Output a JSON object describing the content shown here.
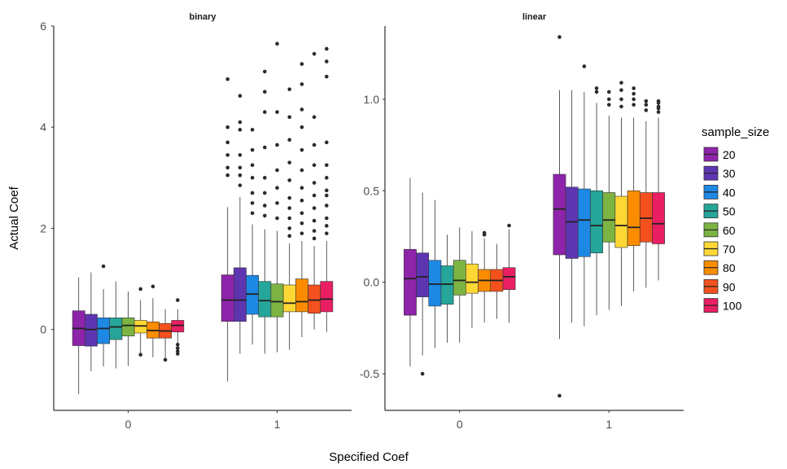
{
  "chart_data": {
    "type": "boxplot",
    "xlabel": "Specified Coef",
    "ylabel": "Actual Coef",
    "categories": [
      "0",
      "1"
    ],
    "legend": {
      "title": "sample_size",
      "position": "right",
      "entries": [
        {
          "label": "20",
          "color": "#8E24AA"
        },
        {
          "label": "30",
          "color": "#5E35B1"
        },
        {
          "label": "40",
          "color": "#1E88E5"
        },
        {
          "label": "50",
          "color": "#26A69A"
        },
        {
          "label": "60",
          "color": "#7CB342"
        },
        {
          "label": "70",
          "color": "#FDD835"
        },
        {
          "label": "80",
          "color": "#FB8C00"
        },
        {
          "label": "90",
          "color": "#F4511E"
        },
        {
          "label": "100",
          "color": "#E91E63"
        }
      ]
    },
    "panels": [
      {
        "title": "binary",
        "ylim": [
          -1.6,
          6.0
        ],
        "yticks": [
          0,
          2,
          4,
          6
        ],
        "groups": [
          {
            "x": "0",
            "boxes": [
              {
                "size": "20",
                "min": -1.28,
                "q1": -0.32,
                "median": 0.02,
                "q3": 0.37,
                "max": 1.03,
                "outliers": []
              },
              {
                "size": "30",
                "min": -0.83,
                "q1": -0.33,
                "median": 0.0,
                "q3": 0.3,
                "max": 1.13,
                "outliers": []
              },
              {
                "size": "40",
                "min": -0.73,
                "q1": -0.28,
                "median": 0.02,
                "q3": 0.23,
                "max": 0.8,
                "outliers": [
                  1.25
                ]
              },
              {
                "size": "50",
                "min": -0.77,
                "q1": -0.2,
                "median": 0.05,
                "q3": 0.23,
                "max": 0.95,
                "outliers": []
              },
              {
                "size": "60",
                "min": -0.72,
                "q1": -0.13,
                "median": 0.08,
                "q3": 0.23,
                "max": 0.75,
                "outliers": []
              },
              {
                "size": "70",
                "min": -0.48,
                "q1": -0.07,
                "median": 0.07,
                "q3": 0.18,
                "max": 0.58,
                "outliers": [
                  -0.5,
                  0.8
                ]
              },
              {
                "size": "80",
                "min": -0.55,
                "q1": -0.17,
                "median": -0.02,
                "q3": 0.15,
                "max": 0.62,
                "outliers": [
                  0.85
                ]
              },
              {
                "size": "90",
                "min": -0.57,
                "q1": -0.17,
                "median": -0.03,
                "q3": 0.12,
                "max": 0.4,
                "outliers": [
                  -0.6
                ]
              },
              {
                "size": "100",
                "min": -0.3,
                "q1": -0.05,
                "median": 0.08,
                "q3": 0.18,
                "max": 0.4,
                "outliers": [
                  -0.3,
                  -0.37,
                  -0.43,
                  -0.48,
                  0.58
                ]
              }
            ]
          },
          {
            "x": "1",
            "boxes": [
              {
                "size": "20",
                "min": -1.03,
                "q1": 0.16,
                "median": 0.58,
                "q3": 1.08,
                "max": 2.42,
                "outliers": [
                  3.05,
                  3.2,
                  3.45,
                  3.7,
                  4.0,
                  4.95
                ]
              },
              {
                "size": "30",
                "min": -0.48,
                "q1": 0.16,
                "median": 0.58,
                "q3": 1.22,
                "max": 2.62,
                "outliers": [
                  2.85,
                  3.05,
                  3.2,
                  3.45,
                  3.95,
                  4.1,
                  4.62
                ]
              },
              {
                "size": "40",
                "min": -0.3,
                "q1": 0.3,
                "median": 0.7,
                "q3": 1.07,
                "max": 2.08,
                "outliers": [
                  2.3,
                  2.5,
                  2.7,
                  3.0,
                  3.25,
                  3.55,
                  3.95
                ]
              },
              {
                "size": "50",
                "min": -0.48,
                "q1": 0.25,
                "median": 0.57,
                "q3": 0.95,
                "max": 1.98,
                "outliers": [
                  2.25,
                  2.45,
                  2.7,
                  3.0,
                  3.6,
                  4.3,
                  4.7,
                  5.1
                ]
              },
              {
                "size": "60",
                "min": -0.45,
                "q1": 0.25,
                "median": 0.55,
                "q3": 0.9,
                "max": 1.95,
                "outliers": [
                  2.2,
                  2.5,
                  2.8,
                  3.15,
                  3.65,
                  4.3,
                  5.65
                ]
              },
              {
                "size": "70",
                "min": -0.4,
                "q1": 0.35,
                "median": 0.52,
                "q3": 0.88,
                "max": 1.7,
                "outliers": [
                  1.85,
                  2.0,
                  2.2,
                  2.4,
                  2.6,
                  2.95,
                  3.3,
                  3.75,
                  4.2,
                  4.75
                ]
              },
              {
                "size": "80",
                "min": -0.15,
                "q1": 0.35,
                "median": 0.55,
                "q3": 1.0,
                "max": 1.75,
                "outliers": [
                  1.9,
                  2.1,
                  2.3,
                  2.55,
                  2.8,
                  3.15,
                  3.55,
                  4.0,
                  4.35,
                  4.85,
                  5.25
                ]
              },
              {
                "size": "90",
                "min": 0.0,
                "q1": 0.32,
                "median": 0.58,
                "q3": 0.88,
                "max": 1.65,
                "outliers": [
                  1.8,
                  1.95,
                  2.15,
                  2.4,
                  2.65,
                  2.9,
                  3.25,
                  3.65,
                  4.2,
                  5.45
                ]
              },
              {
                "size": "100",
                "min": -0.05,
                "q1": 0.35,
                "median": 0.6,
                "q3": 0.95,
                "max": 1.75,
                "outliers": [
                  1.9,
                  2.05,
                  2.2,
                  2.45,
                  2.65,
                  2.75,
                  3.0,
                  3.25,
                  3.7,
                  5.0,
                  5.3,
                  5.55
                ]
              }
            ]
          }
        ]
      },
      {
        "title": "linear",
        "ylim": [
          -0.7,
          1.4
        ],
        "yticks": [
          -0.5,
          0.0,
          0.5,
          1.0
        ],
        "ytick_labels": [
          "-0.5",
          "0.0",
          "0.5",
          "1.0"
        ],
        "groups": [
          {
            "x": "0",
            "boxes": [
              {
                "size": "20",
                "min": -0.46,
                "q1": -0.18,
                "median": 0.02,
                "q3": 0.18,
                "max": 0.57,
                "outliers": []
              },
              {
                "size": "30",
                "min": -0.4,
                "q1": -0.08,
                "median": 0.03,
                "q3": 0.16,
                "max": 0.49,
                "outliers": [
                  -0.5
                ]
              },
              {
                "size": "40",
                "min": -0.36,
                "q1": -0.13,
                "median": -0.01,
                "q3": 0.12,
                "max": 0.45,
                "outliers": []
              },
              {
                "size": "50",
                "min": -0.33,
                "q1": -0.12,
                "median": -0.01,
                "q3": 0.09,
                "max": 0.26,
                "outliers": []
              },
              {
                "size": "60",
                "min": -0.33,
                "q1": -0.07,
                "median": 0.01,
                "q3": 0.12,
                "max": 0.3,
                "outliers": []
              },
              {
                "size": "70",
                "min": -0.25,
                "q1": -0.06,
                "median": 0.0,
                "q3": 0.1,
                "max": 0.28,
                "outliers": []
              },
              {
                "size": "80",
                "min": -0.22,
                "q1": -0.05,
                "median": 0.01,
                "q3": 0.07,
                "max": 0.24,
                "outliers": [
                  0.26,
                  0.27
                ]
              },
              {
                "size": "90",
                "min": -0.2,
                "q1": -0.05,
                "median": 0.01,
                "q3": 0.07,
                "max": 0.21,
                "outliers": []
              },
              {
                "size": "100",
                "min": -0.22,
                "q1": -0.04,
                "median": 0.03,
                "q3": 0.08,
                "max": 0.29,
                "outliers": [
                  0.31
                ]
              }
            ]
          },
          {
            "x": "1",
            "boxes": [
              {
                "size": "20",
                "min": -0.31,
                "q1": 0.15,
                "median": 0.4,
                "q3": 0.59,
                "max": 1.05,
                "outliers": [
                  -0.62,
                  1.34
                ]
              },
              {
                "size": "30",
                "min": -0.22,
                "q1": 0.13,
                "median": 0.33,
                "q3": 0.52,
                "max": 1.05,
                "outliers": []
              },
              {
                "size": "40",
                "min": -0.24,
                "q1": 0.14,
                "median": 0.34,
                "q3": 0.51,
                "max": 1.04,
                "outliers": [
                  1.18
                ]
              },
              {
                "size": "50",
                "min": -0.18,
                "q1": 0.16,
                "median": 0.31,
                "q3": 0.5,
                "max": 0.98,
                "outliers": [
                  1.04,
                  1.06
                ]
              },
              {
                "size": "60",
                "min": -0.15,
                "q1": 0.22,
                "median": 0.34,
                "q3": 0.49,
                "max": 0.91,
                "outliers": [
                  0.97,
                  1.0,
                  1.04
                ]
              },
              {
                "size": "70",
                "min": -0.13,
                "q1": 0.19,
                "median": 0.31,
                "q3": 0.47,
                "max": 0.9,
                "outliers": [
                  0.96,
                  1.0,
                  1.05,
                  1.09
                ]
              },
              {
                "size": "80",
                "min": -0.05,
                "q1": 0.2,
                "median": 0.3,
                "q3": 0.5,
                "max": 0.9,
                "outliers": [
                  0.97,
                  1.0,
                  1.03,
                  1.06
                ]
              },
              {
                "size": "90",
                "min": -0.03,
                "q1": 0.22,
                "median": 0.35,
                "q3": 0.49,
                "max": 0.88,
                "outliers": [
                  0.94,
                  0.97,
                  0.99
                ]
              },
              {
                "size": "100",
                "min": 0.01,
                "q1": 0.21,
                "median": 0.32,
                "q3": 0.49,
                "max": 0.9,
                "outliers": [
                  0.93,
                  0.95,
                  0.96,
                  0.98,
                  0.99
                ]
              }
            ]
          }
        ]
      }
    ]
  }
}
